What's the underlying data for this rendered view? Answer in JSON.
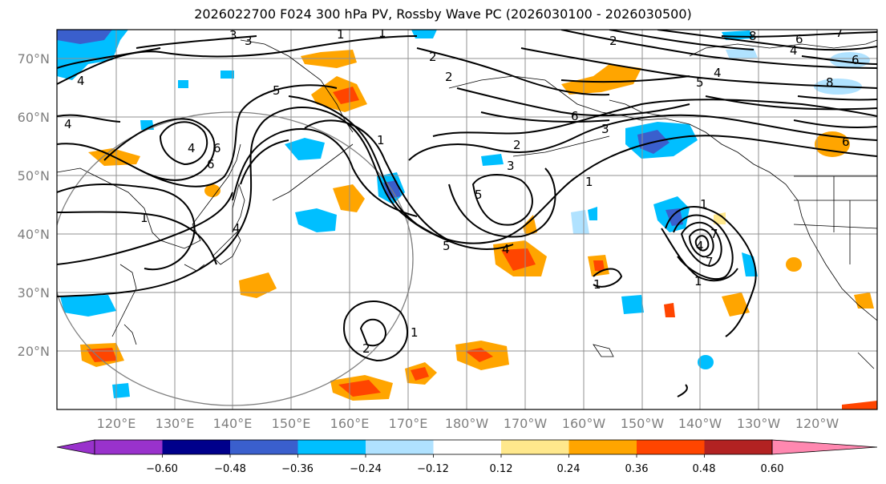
{
  "title": "2026022700 F024 300 hPa PV, Rossby Wave PC (2026030100 - 2026030500)",
  "lat_labels": [
    "70°N",
    "60°N",
    "50°N",
    "40°N",
    "30°N",
    "20°N"
  ],
  "lon_labels": [
    "120°E",
    "130°E",
    "140°E",
    "150°E",
    "160°E",
    "170°E",
    "180°W",
    "170°W",
    "160°W",
    "150°W",
    "140°W",
    "130°W",
    "120°W"
  ],
  "colorbar": {
    "ticks": [
      "−0.60",
      "−0.48",
      "−0.36",
      "−0.24",
      "−0.12",
      "0.12",
      "0.24",
      "0.36",
      "0.48",
      "0.60"
    ],
    "colors": [
      "#9932cc",
      "#00008b",
      "#3a5fcd",
      "#00bfff",
      "#b0e2ff",
      "#ffffff",
      "#ffe88c",
      "#ffa500",
      "#ff4500",
      "#b22222",
      "#ff88b0"
    ]
  },
  "contour_labels": [
    "1",
    "1",
    "2",
    "3",
    "3",
    "4",
    "5",
    "2",
    "2",
    "6",
    "5",
    "4",
    "6",
    "8",
    "4",
    "4",
    "6",
    "4",
    "1",
    "6",
    "4",
    "1",
    "3",
    "2",
    "3",
    "1",
    "5",
    "5",
    "4",
    "1",
    "6",
    "1",
    "2",
    "1",
    "7",
    "4",
    "7",
    "1",
    "6",
    "8",
    "7"
  ]
}
